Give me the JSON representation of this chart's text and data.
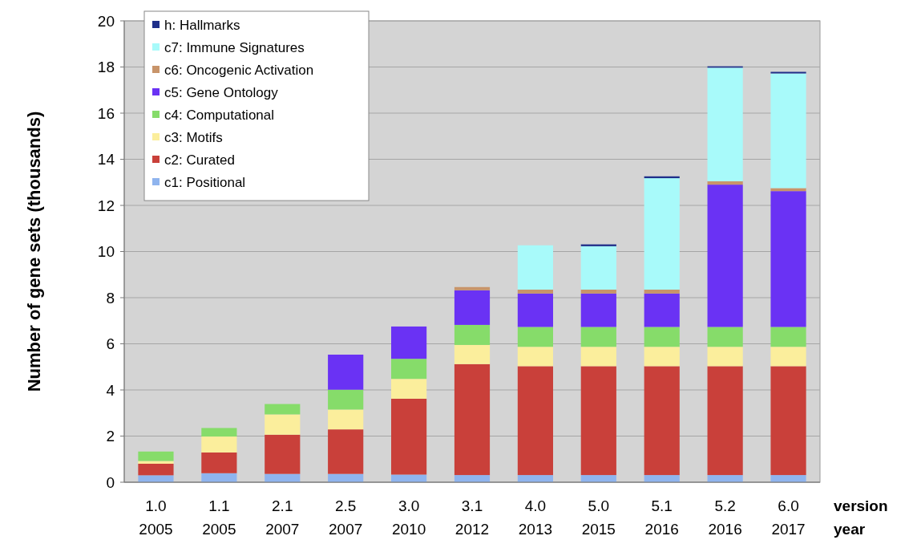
{
  "chart_data": {
    "type": "bar",
    "stacked": true,
    "ylabel": "Number of gene sets (thousands)",
    "xlabel": "version\nyear",
    "categories": [
      "1.0\n2005",
      "1.1\n2005",
      "2.1\n2007",
      "2.5\n2007",
      "3.0\n2010",
      "3.1\n2012",
      "4.0\n2013",
      "5.0\n2015",
      "5.1\n2016",
      "5.2\n2016",
      "6.0\n2017"
    ],
    "series": [
      {
        "name": "c1: Positional",
        "color": "#8fb4ee",
        "values": [
          0.3,
          0.39,
          0.36,
          0.36,
          0.33,
          0.31,
          0.31,
          0.31,
          0.31,
          0.31,
          0.31
        ]
      },
      {
        "name": "c2: Curated",
        "color": "#c9403a",
        "values": [
          0.5,
          0.9,
          1.7,
          1.93,
          3.29,
          4.81,
          4.72,
          4.72,
          4.72,
          4.72,
          4.72
        ]
      },
      {
        "name": "c3: Motifs",
        "color": "#fbee9c",
        "values": [
          0.12,
          0.69,
          0.88,
          0.86,
          0.86,
          0.83,
          0.84,
          0.84,
          0.84,
          0.84,
          0.84
        ]
      },
      {
        "name": "c4: Computational",
        "color": "#86dc6a",
        "values": [
          0.41,
          0.37,
          0.45,
          0.86,
          0.87,
          0.87,
          0.86,
          0.86,
          0.86,
          0.86,
          0.86
        ]
      },
      {
        "name": "c5: Gene Ontology",
        "color": "#6a32f4",
        "values": [
          null,
          null,
          null,
          1.52,
          1.4,
          1.5,
          1.45,
          1.45,
          1.45,
          6.17,
          5.89
        ]
      },
      {
        "name": "c6: Oncogenic Activation",
        "color": "#c8946a",
        "values": [
          null,
          null,
          null,
          null,
          null,
          0.14,
          0.17,
          0.17,
          0.17,
          0.15,
          0.13
        ]
      },
      {
        "name": "c7: Immune Signatures",
        "color": "#a8fafa",
        "values": [
          null,
          null,
          null,
          null,
          null,
          null,
          1.92,
          1.88,
          4.83,
          4.92,
          4.97
        ]
      },
      {
        "name": "h: Hallmarks",
        "color": "#1f2f8a",
        "values": [
          null,
          null,
          null,
          null,
          null,
          null,
          null,
          0.08,
          0.08,
          0.06,
          0.07
        ]
      }
    ],
    "ylim": [
      0,
      20
    ],
    "yticks": [
      0,
      2,
      4,
      6,
      8,
      10,
      12,
      14,
      16,
      18,
      20
    ],
    "grid": "y",
    "legend": "top left"
  }
}
